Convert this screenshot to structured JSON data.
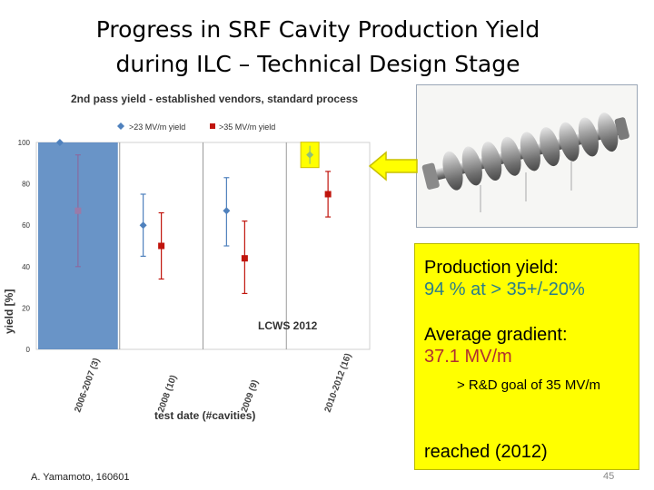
{
  "slide": {
    "title_line1": "Progress in SRF Cavity Production Yield",
    "title_line2": "during ILC – Technical Design Stage",
    "author": "A. Yamamoto, 160601",
    "page_number": "45"
  },
  "callout": {
    "line1_label": "Production yield:",
    "line1_value_a": "94 %",
    "line1_value_b": " at > 35+/-20%",
    "line2_label": "Average gradient:",
    "line2_value": "37.1 MV/m",
    "note": "> R&D goal of 35 MV/m",
    "line3": "reached (2012)"
  },
  "colors": {
    "series_23": "#4f81bd",
    "series_35": "#c0140c",
    "highlight_band": "#4f81bd",
    "arrow_fill": "#ffff00",
    "arrow_stroke": "#c8c000",
    "marker_highlight": "#8ec07a"
  },
  "chart_data": {
    "type": "scatter",
    "title": "2nd pass yield - established vendors, standard process",
    "xlabel": "test date (#cavities)",
    "ylabel": "yield [%]",
    "ylim": [
      0,
      100
    ],
    "yticks": [
      0,
      20,
      40,
      60,
      80,
      100
    ],
    "categories": [
      "2006-2007 (3)",
      "2008 (10)",
      "2009 (9)",
      "2010-2012 (16)"
    ],
    "annotation": "LCWS 2012",
    "legend_position": "top",
    "grid": true,
    "series": [
      {
        "name": ">23 MV/m yield",
        "marker": "diamond",
        "values": [
          100,
          60,
          67,
          94
        ],
        "err_low": [
          100,
          45,
          50,
          89
        ],
        "err_high": [
          100,
          75,
          83,
          98
        ]
      },
      {
        "name": ">35 MV/m yield",
        "marker": "square",
        "values": [
          67,
          50,
          44,
          75
        ],
        "err_low": [
          40,
          34,
          27,
          64
        ],
        "err_high": [
          94,
          66,
          62,
          86
        ]
      }
    ]
  }
}
